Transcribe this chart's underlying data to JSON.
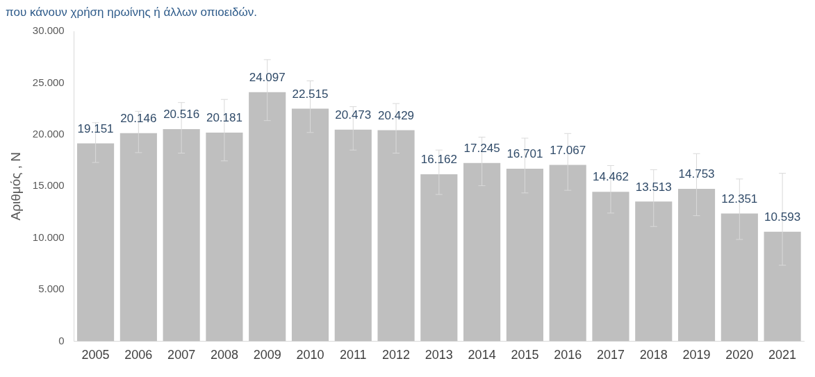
{
  "chart_data": {
    "type": "bar",
    "subtitle": "που κάνουν χρήση ηρωίνης ή άλλων οπιοειδών.",
    "ylabel": "Αριθμός , Ν",
    "categories": [
      "2005",
      "2006",
      "2007",
      "2008",
      "2009",
      "2010",
      "2011",
      "2012",
      "2013",
      "2014",
      "2015",
      "2016",
      "2017",
      "2018",
      "2019",
      "2020",
      "2021"
    ],
    "values": [
      19151,
      20146,
      20516,
      20181,
      24097,
      22515,
      20473,
      20429,
      16162,
      17245,
      16701,
      17067,
      14462,
      13513,
      14753,
      12351,
      10593
    ],
    "value_labels": [
      "19.151",
      "20.146",
      "20.516",
      "20.181",
      "24.097",
      "22.515",
      "20.473",
      "20.429",
      "16.162",
      "17.245",
      "16.701",
      "17.067",
      "14.462",
      "13.513",
      "14.753",
      "12.351",
      "10.593"
    ],
    "errors": [
      [
        17300,
        21150
      ],
      [
        18250,
        22250
      ],
      [
        18200,
        23100
      ],
      [
        17450,
        23400
      ],
      [
        21350,
        27250
      ],
      [
        20200,
        25200
      ],
      [
        18500,
        22700
      ],
      [
        18200,
        23000
      ],
      [
        14200,
        18500
      ],
      [
        15050,
        19750
      ],
      [
        14350,
        19650
      ],
      [
        14600,
        20100
      ],
      [
        12400,
        17000
      ],
      [
        11100,
        16600
      ],
      [
        12150,
        18150
      ],
      [
        9850,
        15700
      ],
      [
        7350,
        16250
      ]
    ],
    "color": "#bfbfbf",
    "ylim": [
      0,
      30000
    ],
    "yticks": [
      {
        "value": 0,
        "label": "0"
      },
      {
        "value": 5000,
        "label": "5.000"
      },
      {
        "value": 10000,
        "label": "10.000"
      },
      {
        "value": 15000,
        "label": "15.000"
      },
      {
        "value": 20000,
        "label": "20.000"
      },
      {
        "value": 25000,
        "label": "25.000"
      },
      {
        "value": 30000,
        "label": "30.000"
      }
    ],
    "grid": false,
    "legend": false
  }
}
